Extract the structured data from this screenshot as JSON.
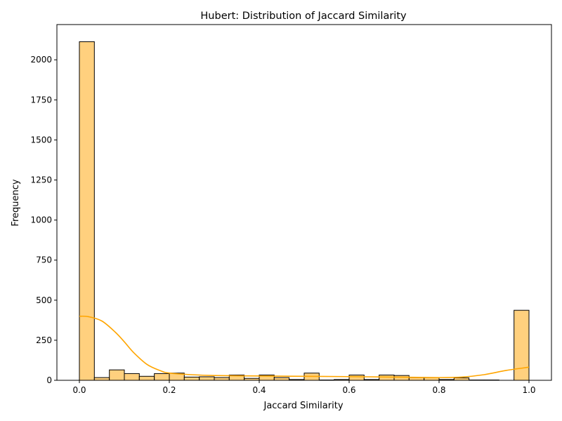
{
  "chart_data": {
    "type": "histogram",
    "title": "Hubert: Distribution of Jaccard Similarity",
    "xlabel": "Jaccard Similarity",
    "ylabel": "Frequency",
    "xlim": [
      -0.05,
      1.05
    ],
    "ylim": [
      0,
      2220
    ],
    "x_ticks": [
      0.0,
      0.2,
      0.4,
      0.6,
      0.8,
      1.0
    ],
    "x_tick_labels": [
      "0.0",
      "0.2",
      "0.4",
      "0.6",
      "0.8",
      "1.0"
    ],
    "y_ticks": [
      0,
      250,
      500,
      750,
      1000,
      1250,
      1500,
      1750,
      2000
    ],
    "y_tick_labels": [
      "0",
      "250",
      "500",
      "750",
      "1000",
      "1250",
      "1500",
      "1750",
      "2000"
    ],
    "grid": false,
    "bin_width": 0.0333,
    "bins_start": [
      0.0,
      0.0333,
      0.0667,
      0.1,
      0.1333,
      0.1667,
      0.2,
      0.2333,
      0.2667,
      0.3,
      0.3333,
      0.3667,
      0.4,
      0.4333,
      0.4667,
      0.5,
      0.5333,
      0.5667,
      0.6,
      0.6333,
      0.6667,
      0.7,
      0.7333,
      0.7667,
      0.8,
      0.8333,
      0.8667,
      0.9,
      0.9333,
      0.9667
    ],
    "values": [
      2113,
      17,
      65,
      42,
      25,
      42,
      45,
      20,
      22,
      17,
      33,
      12,
      33,
      17,
      5,
      45,
      2,
      5,
      33,
      5,
      33,
      30,
      17,
      17,
      5,
      15,
      2,
      2,
      0,
      437
    ],
    "bar_color": "#FFD07E",
    "edge_color": "#000000",
    "kde": {
      "color": "#FFA500",
      "x": [
        0.0,
        0.02,
        0.05,
        0.08,
        0.1,
        0.12,
        0.15,
        0.18,
        0.2,
        0.25,
        0.3,
        0.4,
        0.5,
        0.6,
        0.7,
        0.8,
        0.85,
        0.9,
        0.95,
        1.0
      ],
      "y": [
        400,
        397,
        370,
        300,
        240,
        175,
        100,
        60,
        45,
        35,
        30,
        27,
        25,
        23,
        20,
        17,
        20,
        35,
        62,
        82
      ]
    }
  }
}
